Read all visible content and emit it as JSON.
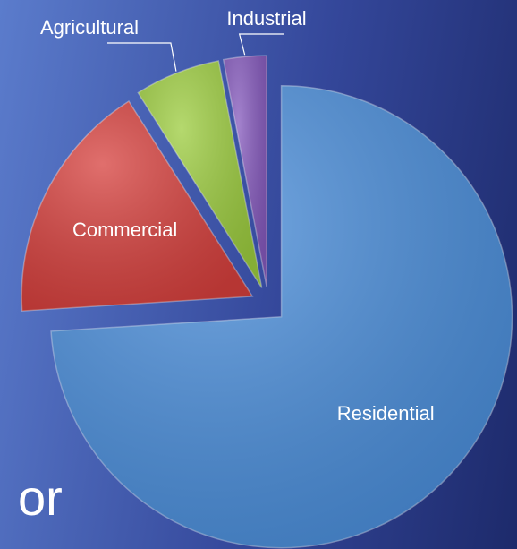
{
  "chart_data": {
    "type": "pie",
    "categories": [
      "Residential",
      "Commercial",
      "Agricultural",
      "Industrial"
    ],
    "values": [
      74,
      17,
      6,
      3
    ],
    "colors": [
      "#4a8edb",
      "#d63f3c",
      "#9ccc3e",
      "#8559bd"
    ],
    "explode": true
  },
  "slide_text": "or"
}
